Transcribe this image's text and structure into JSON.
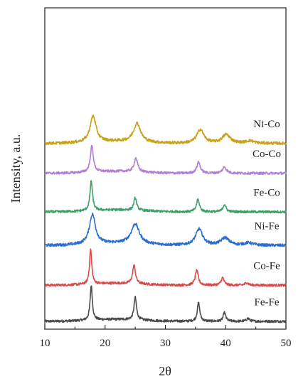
{
  "chart_data": {
    "type": "line",
    "xlabel": "2θ",
    "ylabel": "Intensity, a.u.",
    "xlim": [
      10,
      50
    ],
    "x_ticks": [
      10,
      20,
      30,
      40,
      50
    ],
    "grid": false,
    "legend": "none",
    "series": [
      {
        "name": "Fe-Fe",
        "color": "#4a4a4a",
        "offset": 0,
        "baseline": 0,
        "noise": 0.6,
        "peaks": [
          {
            "x": 17.7,
            "height": 14.0,
            "width": 0.22
          },
          {
            "x": 25.0,
            "height": 9.0,
            "width": 0.25
          },
          {
            "x": 35.5,
            "height": 7.5,
            "width": 0.25
          },
          {
            "x": 39.8,
            "height": 3.5,
            "width": 0.25
          },
          {
            "x": 43.7,
            "height": 1.2,
            "width": 0.3
          }
        ]
      },
      {
        "name": "Co-Fe",
        "color": "#d94a4a",
        "offset": 14.5,
        "baseline": 0,
        "noise": 0.6,
        "peaks": [
          {
            "x": 17.6,
            "height": 14.0,
            "width": 0.22
          },
          {
            "x": 24.8,
            "height": 7.5,
            "width": 0.28
          },
          {
            "x": 35.2,
            "height": 6.0,
            "width": 0.3
          },
          {
            "x": 39.5,
            "height": 3.0,
            "width": 0.3
          },
          {
            "x": 43.5,
            "height": 1.0,
            "width": 0.35
          }
        ]
      },
      {
        "name": "Ni-Fe",
        "color": "#2a6fd0",
        "offset": 16.0,
        "baseline": 0,
        "noise": 0.7,
        "peaks": [
          {
            "x": 17.9,
            "height": 12.0,
            "width": 0.6
          },
          {
            "x": 25.0,
            "height": 8.0,
            "width": 0.8
          },
          {
            "x": 35.6,
            "height": 6.5,
            "width": 0.7
          },
          {
            "x": 39.9,
            "height": 3.0,
            "width": 0.8
          },
          {
            "x": 43.8,
            "height": 1.0,
            "width": 0.8
          }
        ]
      },
      {
        "name": "Fe-Co",
        "color": "#3fa06a",
        "offset": 13.5,
        "baseline": 0,
        "noise": 0.6,
        "peaks": [
          {
            "x": 17.7,
            "height": 12.0,
            "width": 0.25
          },
          {
            "x": 25.0,
            "height": 5.0,
            "width": 0.28
          },
          {
            "x": 35.4,
            "height": 5.0,
            "width": 0.3
          },
          {
            "x": 39.8,
            "height": 3.0,
            "width": 0.3
          }
        ]
      },
      {
        "name": "Co-Co",
        "color": "#b07fd6",
        "offset": 15.5,
        "baseline": 0,
        "noise": 0.6,
        "peaks": [
          {
            "x": 17.8,
            "height": 10.5,
            "width": 0.3
          },
          {
            "x": 25.1,
            "height": 5.5,
            "width": 0.35
          },
          {
            "x": 35.5,
            "height": 4.5,
            "width": 0.35
          },
          {
            "x": 39.8,
            "height": 2.5,
            "width": 0.4
          }
        ]
      },
      {
        "name": "Ni-Co",
        "color": "#c9a21c",
        "offset": 12.0,
        "baseline": 0,
        "noise": 0.7,
        "peaks": [
          {
            "x": 18.0,
            "height": 10.5,
            "width": 0.6
          },
          {
            "x": 25.3,
            "height": 7.5,
            "width": 0.7
          },
          {
            "x": 35.8,
            "height": 5.5,
            "width": 0.7
          },
          {
            "x": 40.1,
            "height": 3.5,
            "width": 0.8
          },
          {
            "x": 44.0,
            "height": 1.0,
            "width": 0.8
          }
        ]
      }
    ]
  }
}
